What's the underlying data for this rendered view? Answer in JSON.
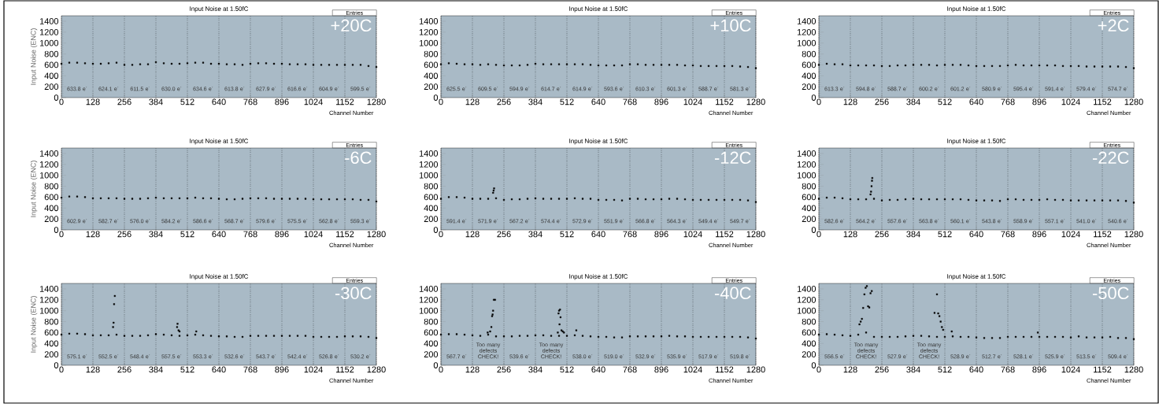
{
  "chart_data": [
    {
      "type": "scatter",
      "title": "Input Noise at 1.50fC",
      "xlabel": "Channel Number",
      "ylabel": "Input Noise (ENC)",
      "color": "#000000",
      "marker": "square",
      "grid": "x",
      "xlim": [
        0,
        1280
      ],
      "ylim": [
        0,
        1500
      ],
      "xticks": [
        0,
        128,
        256,
        384,
        512,
        640,
        768,
        896,
        1024,
        1152,
        1280
      ],
      "yticks": [
        0,
        200,
        400,
        600,
        800,
        1000,
        1200,
        1400
      ],
      "x": [
        0,
        32,
        64,
        96,
        128,
        160,
        192,
        224,
        256,
        288,
        320,
        352,
        384,
        416,
        448,
        480,
        512,
        544,
        576,
        608,
        640,
        672,
        704,
        736,
        768,
        800,
        832,
        864,
        896,
        928,
        960,
        992,
        1024,
        1056,
        1088,
        1120,
        1152,
        1184,
        1216,
        1248,
        1280
      ],
      "values": [
        620,
        640,
        640,
        630,
        620,
        620,
        630,
        640,
        600,
        600,
        610,
        610,
        650,
        630,
        620,
        620,
        630,
        640,
        640,
        620,
        620,
        610,
        610,
        600,
        620,
        630,
        630,
        620,
        620,
        610,
        610,
        610,
        600,
        600,
        600,
        600,
        600,
        600,
        600,
        580,
        560
      ],
      "annotations": [
        "+20C",
        "Entries",
        "633.8 e$^{-}$",
        "624.1 e$^{-}$",
        "611.5 e$^{-}$",
        "630.0 e$^{-}$",
        "634.6 e$^{-}$",
        "613.8 e$^{-}$",
        "627.9 e$^{-}$",
        "616.6 e$^{-}$",
        "604.9 e$^{-}$",
        "599.5 e$^{-}$"
      ]
    },
    {
      "type": "scatter",
      "title": "Input Noise at 1.50fC",
      "xlabel": "Channel Number",
      "color": "#000000",
      "marker": "square",
      "grid": "x",
      "xlim": [
        0,
        1280
      ],
      "ylim": [
        0,
        1500
      ],
      "xticks": [
        0,
        128,
        256,
        384,
        512,
        640,
        768,
        896,
        1024,
        1152,
        1280
      ],
      "yticks": [
        0,
        200,
        400,
        600,
        800,
        1000,
        1200,
        1400
      ],
      "x": [
        0,
        32,
        64,
        96,
        128,
        160,
        192,
        224,
        256,
        288,
        320,
        352,
        384,
        416,
        448,
        480,
        512,
        544,
        576,
        608,
        640,
        672,
        704,
        736,
        768,
        800,
        832,
        864,
        896,
        928,
        960,
        992,
        1024,
        1056,
        1088,
        1120,
        1152,
        1184,
        1216,
        1248,
        1280
      ],
      "values": [
        610,
        630,
        620,
        610,
        610,
        600,
        610,
        600,
        590,
        590,
        590,
        600,
        620,
        610,
        610,
        610,
        610,
        610,
        610,
        600,
        590,
        590,
        590,
        590,
        610,
        610,
        600,
        600,
        600,
        600,
        600,
        590,
        590,
        580,
        580,
        580,
        580,
        580,
        570,
        560,
        540
      ],
      "annotations": [
        "+10C",
        "Entries",
        "625.5 e$^{-}$",
        "609.5 e$^{-}$",
        "594.9 e$^{-}$",
        "614.7 e$^{-}$",
        "614.9 e$^{-}$",
        "593.6 e$^{-}$",
        "610.3 e$^{-}$",
        "601.3 e$^{-}$",
        "588.7 e$^{-}$",
        "581.3 e$^{-}$"
      ]
    },
    {
      "type": "scatter",
      "title": "Input Noise at 1.50fC",
      "xlabel": "Channel Number",
      "color": "#000000",
      "marker": "square",
      "grid": "x",
      "xlim": [
        0,
        1280
      ],
      "ylim": [
        0,
        1500
      ],
      "xticks": [
        0,
        128,
        256,
        384,
        512,
        640,
        768,
        896,
        1024,
        1152,
        1280
      ],
      "yticks": [
        0,
        200,
        400,
        600,
        800,
        1000,
        1200,
        1400
      ],
      "x": [
        0,
        32,
        64,
        96,
        128,
        160,
        192,
        224,
        256,
        288,
        320,
        352,
        384,
        416,
        448,
        480,
        512,
        544,
        576,
        608,
        640,
        672,
        704,
        736,
        768,
        800,
        832,
        864,
        896,
        928,
        960,
        992,
        1024,
        1056,
        1088,
        1120,
        1152,
        1184,
        1216,
        1248,
        1280
      ],
      "values": [
        600,
        620,
        610,
        610,
        590,
        590,
        590,
        590,
        580,
        580,
        590,
        590,
        600,
        600,
        600,
        590,
        600,
        600,
        600,
        590,
        580,
        580,
        580,
        580,
        590,
        600,
        590,
        590,
        590,
        590,
        590,
        580,
        580,
        580,
        570,
        570,
        570,
        570,
        570,
        560,
        540
      ],
      "annotations": [
        "+2C",
        "Entries",
        "613.3 e$^{-}$",
        "594.8 e$^{-}$",
        "588.7 e$^{-}$",
        "600.2 e$^{-}$",
        "601.2 e$^{-}$",
        "580.9 e$^{-}$",
        "595.4 e$^{-}$",
        "591.4 e$^{-}$",
        "579.4 e$^{-}$",
        "574.7 e$^{-}$"
      ]
    },
    {
      "type": "scatter",
      "title": "Input Noise at 1.50fC",
      "xlabel": "Channel Number",
      "ylabel": "Input Noise (ENC)",
      "color": "#000000",
      "marker": "square",
      "grid": "x",
      "xlim": [
        0,
        1280
      ],
      "ylim": [
        0,
        1500
      ],
      "xticks": [
        0,
        128,
        256,
        384,
        512,
        640,
        768,
        896,
        1024,
        1152,
        1280
      ],
      "yticks": [
        0,
        200,
        400,
        600,
        800,
        1000,
        1200,
        1400
      ],
      "x": [
        0,
        32,
        64,
        96,
        128,
        160,
        192,
        224,
        256,
        288,
        320,
        352,
        384,
        416,
        448,
        480,
        512,
        544,
        576,
        608,
        640,
        672,
        704,
        736,
        768,
        800,
        832,
        864,
        896,
        928,
        960,
        992,
        1024,
        1056,
        1088,
        1120,
        1152,
        1184,
        1216,
        1248,
        1280
      ],
      "values": [
        590,
        610,
        610,
        600,
        580,
        580,
        580,
        580,
        570,
        570,
        570,
        580,
        590,
        580,
        580,
        580,
        580,
        590,
        580,
        580,
        570,
        560,
        560,
        570,
        580,
        580,
        580,
        570,
        570,
        570,
        570,
        570,
        560,
        560,
        560,
        560,
        560,
        560,
        550,
        550,
        520
      ],
      "annotations": [
        "-6C",
        "Entries",
        "602.9 e$^{-}$",
        "582.7 e$^{-}$",
        "576.0 e$^{-}$",
        "584.2 e$^{-}$",
        "586.6 e$^{-}$",
        "568.7 e$^{-}$",
        "579.6 e$^{-}$",
        "575.5 e$^{-}$",
        "562.8 e$^{-}$",
        "559.3 e$^{-}$"
      ]
    },
    {
      "type": "scatter",
      "title": "Input Noise at 1.50fC",
      "xlabel": "Channel Number",
      "color": "#000000",
      "marker": "square",
      "grid": "x",
      "xlim": [
        0,
        1280
      ],
      "ylim": [
        0,
        1500
      ],
      "xticks": [
        0,
        128,
        256,
        384,
        512,
        640,
        768,
        896,
        1024,
        1152,
        1280
      ],
      "yticks": [
        0,
        200,
        400,
        600,
        800,
        1000,
        1200,
        1400
      ],
      "x": [
        0,
        32,
        64,
        96,
        128,
        160,
        192,
        224,
        256,
        288,
        320,
        352,
        384,
        416,
        448,
        480,
        512,
        544,
        576,
        608,
        640,
        672,
        704,
        736,
        768,
        800,
        832,
        864,
        896,
        928,
        960,
        992,
        1024,
        1056,
        1088,
        1120,
        1152,
        1184,
        1216,
        1248,
        1280,
        212,
        214,
        216
      ],
      "values": [
        570,
        600,
        600,
        590,
        570,
        570,
        570,
        580,
        550,
        560,
        560,
        570,
        580,
        570,
        570,
        570,
        570,
        580,
        570,
        570,
        550,
        550,
        550,
        540,
        570,
        570,
        560,
        560,
        560,
        570,
        570,
        560,
        550,
        550,
        550,
        550,
        550,
        550,
        550,
        540,
        510,
        680,
        720,
        760
      ],
      "annotations": [
        "-12C",
        "Entries",
        "591.4 e$^{-}$",
        "571.9 e$^{-}$",
        "567.2 e$^{-}$",
        "574.4 e$^{-}$",
        "572.9 e$^{-}$",
        "551.9 e$^{-}$",
        "566.8 e$^{-}$",
        "564.3 e$^{-}$",
        "549.4 e$^{-}$",
        "549.7 e$^{-}$"
      ]
    },
    {
      "type": "scatter",
      "title": "Input Noise at 1.50fC",
      "xlabel": "Channel Number",
      "color": "#000000",
      "marker": "square",
      "grid": "x",
      "xlim": [
        0,
        1280
      ],
      "ylim": [
        0,
        1500
      ],
      "xticks": [
        0,
        128,
        256,
        384,
        512,
        640,
        768,
        896,
        1024,
        1152,
        1280
      ],
      "yticks": [
        0,
        200,
        400,
        600,
        800,
        1000,
        1200,
        1400
      ],
      "x": [
        0,
        32,
        64,
        96,
        128,
        160,
        192,
        224,
        256,
        288,
        320,
        352,
        384,
        416,
        448,
        480,
        512,
        544,
        576,
        608,
        640,
        672,
        704,
        736,
        768,
        800,
        832,
        864,
        896,
        928,
        960,
        992,
        1024,
        1056,
        1088,
        1120,
        1152,
        1184,
        1216,
        1248,
        1280,
        210,
        212,
        214,
        216,
        217
      ],
      "values": [
        570,
        590,
        590,
        580,
        560,
        560,
        560,
        570,
        540,
        550,
        550,
        560,
        570,
        560,
        560,
        560,
        560,
        560,
        560,
        550,
        540,
        540,
        540,
        530,
        560,
        560,
        550,
        550,
        550,
        560,
        550,
        550,
        540,
        540,
        540,
        540,
        540,
        540,
        540,
        530,
        500,
        650,
        700,
        800,
        900,
        950
      ],
      "annotations": [
        "-22C",
        "Entries",
        "582.6 e$^{-}$",
        "564.2 e$^{-}$",
        "557.6 e$^{-}$",
        "563.8 e$^{-}$",
        "560.1 e$^{-}$",
        "543.8 e$^{-}$",
        "558.9 e$^{-}$",
        "557.1 e$^{-}$",
        "541.0 e$^{-}$",
        "540.6 e$^{-}$"
      ]
    },
    {
      "type": "scatter",
      "title": "Input Noise at 1.50fC",
      "xlabel": "Channel Number",
      "ylabel": "Input Noise (ENC)",
      "color": "#000000",
      "marker": "square",
      "grid": "x",
      "xlim": [
        0,
        1280
      ],
      "ylim": [
        0,
        1500
      ],
      "xticks": [
        0,
        128,
        256,
        384,
        512,
        640,
        768,
        896,
        1024,
        1152,
        1280
      ],
      "yticks": [
        0,
        200,
        400,
        600,
        800,
        1000,
        1200,
        1400
      ],
      "x": [
        0,
        32,
        64,
        96,
        128,
        160,
        192,
        224,
        256,
        288,
        320,
        352,
        384,
        416,
        448,
        480,
        512,
        544,
        576,
        608,
        640,
        672,
        704,
        736,
        768,
        800,
        832,
        864,
        896,
        928,
        960,
        992,
        1024,
        1056,
        1088,
        1120,
        1152,
        1184,
        1216,
        1248,
        1280,
        210,
        212,
        214,
        217,
        470,
        472,
        476,
        480,
        548
      ],
      "values": [
        560,
        580,
        580,
        570,
        550,
        550,
        550,
        560,
        540,
        540,
        540,
        550,
        570,
        560,
        550,
        540,
        550,
        560,
        550,
        540,
        530,
        530,
        520,
        520,
        540,
        540,
        540,
        540,
        540,
        540,
        540,
        540,
        520,
        520,
        520,
        520,
        530,
        530,
        530,
        520,
        500,
        700,
        780,
        1120,
        1270,
        700,
        760,
        640,
        620,
        620
      ],
      "annotations": [
        "-30C",
        "Entries",
        "575.1 e$^{-}$",
        "552.5 e$^{-}$",
        "548.4 e$^{-}$",
        "557.5 e$^{-}$",
        "553.3 e$^{-}$",
        "532.6 e$^{-}$",
        "543.7 e$^{-}$",
        "542.4 e$^{-}$",
        "526.8 e$^{-}$",
        "530.2 e$^{-}$"
      ]
    },
    {
      "type": "scatter",
      "title": "Input Noise at 1.50fC",
      "xlabel": "Channel Number",
      "color": "#000000",
      "marker": "square",
      "grid": "x",
      "xlim": [
        0,
        1280
      ],
      "ylim": [
        0,
        1500
      ],
      "xticks": [
        0,
        128,
        256,
        384,
        512,
        640,
        768,
        896,
        1024,
        1152,
        1280
      ],
      "yticks": [
        0,
        200,
        400,
        600,
        800,
        1000,
        1200,
        1400
      ],
      "x": [
        0,
        32,
        64,
        96,
        128,
        160,
        192,
        224,
        256,
        288,
        320,
        352,
        384,
        416,
        448,
        480,
        512,
        544,
        576,
        608,
        640,
        672,
        704,
        736,
        768,
        800,
        832,
        864,
        896,
        928,
        960,
        992,
        1024,
        1056,
        1088,
        1120,
        1152,
        1184,
        1216,
        1248,
        1280,
        190,
        200,
        205,
        208,
        210,
        212,
        215,
        220,
        475,
        478,
        480,
        482,
        484,
        486,
        490,
        495,
        500,
        550
      ],
      "values": [
        560,
        570,
        570,
        560,
        550,
        540,
        560,
        530,
        530,
        530,
        540,
        540,
        550,
        550,
        540,
        540,
        540,
        550,
        540,
        530,
        520,
        520,
        510,
        510,
        530,
        530,
        530,
        530,
        530,
        540,
        530,
        530,
        520,
        520,
        520,
        520,
        520,
        520,
        520,
        510,
        490,
        600,
        620,
        700,
        900,
        930,
        1000,
        1200,
        1200,
        600,
        950,
        1000,
        750,
        1020,
        880,
        640,
        620,
        600,
        640
      ],
      "annotations": [
        "-40C",
        "Entries",
        "567.7 e$^{-}$",
        "Too many defects CHECK!",
        "539.6 e$^{-}$",
        "Too many defects CHECK!",
        "538.0 e$^{-}$",
        "519.0 e$^{-}$",
        "532.9 e$^{-}$",
        "535.9 e$^{-}$",
        "517.9 e$^{-}$",
        "519.8 e$^{-}$"
      ]
    },
    {
      "type": "scatter",
      "title": "Input Noise at 1.50fC",
      "xlabel": "Channel Number",
      "color": "#000000",
      "marker": "square",
      "grid": "x",
      "xlim": [
        0,
        1280
      ],
      "ylim": [
        0,
        1500
      ],
      "xticks": [
        0,
        128,
        256,
        384,
        512,
        640,
        768,
        896,
        1024,
        1152,
        1280
      ],
      "yticks": [
        0,
        200,
        400,
        600,
        800,
        1000,
        1200,
        1400
      ],
      "x": [
        0,
        32,
        64,
        96,
        128,
        160,
        192,
        224,
        256,
        288,
        320,
        352,
        384,
        416,
        448,
        480,
        512,
        544,
        576,
        608,
        640,
        672,
        704,
        736,
        768,
        800,
        832,
        864,
        896,
        928,
        960,
        992,
        1024,
        1056,
        1088,
        1120,
        1152,
        1184,
        1216,
        1248,
        1280,
        165,
        170,
        175,
        180,
        185,
        190,
        195,
        200,
        205,
        210,
        215,
        470,
        480,
        485,
        490,
        495,
        500,
        505,
        540,
        890
      ],
      "values": [
        560,
        570,
        560,
        550,
        540,
        560,
        600,
        520,
        520,
        520,
        520,
        530,
        540,
        540,
        530,
        520,
        520,
        530,
        520,
        520,
        510,
        500,
        500,
        500,
        520,
        520,
        520,
        520,
        520,
        520,
        520,
        520,
        510,
        530,
        510,
        510,
        510,
        520,
        500,
        500,
        480,
        750,
        800,
        850,
        1050,
        1300,
        1420,
        1450,
        1080,
        1060,
        1320,
        1360,
        960,
        1300,
        950,
        900,
        800,
        700,
        650,
        620,
        600
      ],
      "annotations": [
        "-50C",
        "Entries",
        "556.5 e$^{-}$",
        "Too many defects CHECK!",
        "527.9 e$^{-}$",
        "Too many defects CHECK!",
        "528.9 e$^{-}$",
        "512.7 e$^{-}$",
        "528.1 e$^{-}$",
        "525.9 e$^{-}$",
        "513.5 e$^{-}$",
        "509.4 e$^{-}$"
      ]
    }
  ]
}
